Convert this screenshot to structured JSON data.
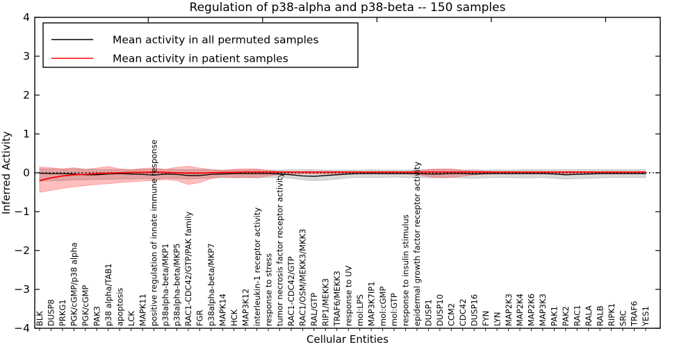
{
  "figure": {
    "title": "Regulation of p38-alpha and p38-beta -- 150 samples",
    "xlabel": "Cellular Entities",
    "ylabel": "Inferred Activity"
  },
  "legend": {
    "entries": [
      {
        "label": "Mean activity in all permuted samples",
        "color": "#000000"
      },
      {
        "label": "Mean activity in patient samples",
        "color": "#ff0000"
      }
    ]
  },
  "chart_data": {
    "type": "line",
    "title": "Regulation of p38-alpha and p38-beta -- 150 samples",
    "xlabel": "Cellular Entities",
    "ylabel": "Inferred Activity",
    "ylim": [
      -4,
      4
    ],
    "yticks": [
      -4,
      -3,
      -2,
      -1,
      0,
      1,
      2,
      3,
      4
    ],
    "grid": false,
    "legend_position": "upper left",
    "zero_reference_line": 0,
    "categories": [
      "BLK",
      "DUSP8",
      "PRKG1",
      "PGK/cGMP/p38 alpha",
      "PGK/cGMP",
      "PAK3",
      "p38 alpha/TAB1",
      "apoptosis",
      "LCK",
      "MAPK11",
      "positive regulation of innate immune response",
      "p38alpha-beta/MKP1",
      "p38alpha-beta/MKP5",
      "RAC1-CDC42/GTP/PAK family",
      "FGR",
      "p38alpha-beta/MKP7",
      "MAPK14",
      "HCK",
      "MAP3K12",
      "interleukin-1 receptor activity",
      "response to stress",
      "tumor necrosis factor receptor activity",
      "RAC1-CDC42/GTP",
      "RAC1/OSM/MEKK3/MKK3",
      "RAL/GTP",
      "RIP1/MEKK3",
      "TRAF6/MEKK3",
      "response to UV",
      "mol:LPS",
      "MAP3K7IP1",
      "mol:cGMP",
      "mol:GTP",
      "response to insulin stimulus",
      "epidermal growth factor receptor activity",
      "DUSP1",
      "DUSP10",
      "CCM2",
      "CDC42",
      "DUSP16",
      "FYN",
      "LYN",
      "MAP2K3",
      "MAP2K4",
      "MAP2K6",
      "MAP3K3",
      "PAK1",
      "PAK2",
      "RAC1",
      "RALA",
      "RALB",
      "RIPK1",
      "SRC",
      "TRAF6",
      "YES1"
    ],
    "series": [
      {
        "name": "Mean activity in all permuted samples",
        "color": "#000000",
        "width": 1.3,
        "values": [
          -0.01,
          -0.02,
          -0.02,
          -0.03,
          -0.05,
          -0.05,
          -0.03,
          -0.02,
          -0.03,
          -0.04,
          -0.06,
          -0.03,
          -0.04,
          -0.07,
          -0.07,
          -0.04,
          -0.03,
          -0.02,
          -0.02,
          -0.02,
          -0.02,
          -0.03,
          -0.05,
          -0.08,
          -0.09,
          -0.07,
          -0.05,
          -0.03,
          -0.02,
          -0.02,
          -0.02,
          -0.02,
          -0.02,
          -0.02,
          -0.03,
          -0.03,
          -0.02,
          -0.02,
          -0.03,
          -0.02,
          -0.02,
          -0.02,
          -0.02,
          -0.02,
          -0.02,
          -0.03,
          -0.05,
          -0.04,
          -0.03,
          -0.02,
          -0.02,
          -0.02,
          -0.02,
          -0.02
        ]
      },
      {
        "name": "Mean activity in patient samples",
        "color": "#ff0000",
        "width": 1.8,
        "values": [
          -0.2,
          -0.13,
          -0.08,
          -0.05,
          -0.04,
          -0.02,
          -0.01,
          0.0,
          0.01,
          0.01,
          0.02,
          0.01,
          0.0,
          -0.01,
          -0.01,
          0.0,
          0.01,
          0.01,
          0.02,
          0.02,
          0.02,
          0.02,
          0.02,
          0.02,
          0.02,
          0.02,
          0.02,
          0.02,
          0.02,
          0.02,
          0.02,
          0.02,
          0.02,
          0.02,
          0.02,
          0.02,
          0.02,
          0.02,
          0.02,
          0.02,
          0.02,
          0.02,
          0.02,
          0.02,
          0.02,
          0.02,
          0.02,
          0.02,
          0.02,
          0.02,
          0.02,
          0.02,
          0.02,
          0.02
        ]
      }
    ],
    "bands": [
      {
        "name": "permuted-samples-range",
        "color": "#aaaaaa",
        "fill_opacity": 0.45,
        "edge_color": "#9e9e9e",
        "upper": [
          0.1,
          0.1,
          0.09,
          0.1,
          0.09,
          0.08,
          0.09,
          0.08,
          0.08,
          0.09,
          0.08,
          0.08,
          0.09,
          0.08,
          0.08,
          0.08,
          0.07,
          0.08,
          0.07,
          0.08,
          0.07,
          0.07,
          0.08,
          0.08,
          0.08,
          0.07,
          0.07,
          0.07,
          0.07,
          0.08,
          0.07,
          0.07,
          0.07,
          0.08,
          0.08,
          0.08,
          0.08,
          0.07,
          0.08,
          0.07,
          0.08,
          0.07,
          0.08,
          0.08,
          0.08,
          0.08,
          0.08,
          0.08,
          0.08,
          0.08,
          0.08,
          0.08,
          0.08,
          0.08
        ],
        "lower": [
          -0.22,
          -0.2,
          -0.2,
          -0.18,
          -0.18,
          -0.17,
          -0.17,
          -0.16,
          -0.16,
          -0.15,
          -0.16,
          -0.14,
          -0.15,
          -0.16,
          -0.15,
          -0.13,
          -0.13,
          -0.13,
          -0.12,
          -0.13,
          -0.12,
          -0.12,
          -0.14,
          -0.18,
          -0.2,
          -0.19,
          -0.16,
          -0.13,
          -0.12,
          -0.12,
          -0.12,
          -0.11,
          -0.12,
          -0.12,
          -0.13,
          -0.13,
          -0.12,
          -0.13,
          -0.14,
          -0.13,
          -0.12,
          -0.12,
          -0.13,
          -0.13,
          -0.12,
          -0.14,
          -0.16,
          -0.15,
          -0.14,
          -0.13,
          -0.12,
          -0.12,
          -0.12,
          -0.12
        ]
      },
      {
        "name": "patient-samples-range",
        "color": "#ff0000",
        "fill_opacity": 0.25,
        "edge_color": "#ff6060",
        "upper": [
          0.15,
          0.13,
          0.1,
          0.13,
          0.09,
          0.12,
          0.16,
          0.1,
          0.08,
          0.11,
          0.13,
          0.09,
          0.14,
          0.17,
          0.12,
          0.08,
          0.06,
          0.09,
          0.1,
          0.1,
          0.06,
          0.03,
          0.03,
          0.03,
          0.03,
          0.03,
          0.03,
          0.03,
          0.03,
          0.03,
          0.03,
          0.03,
          0.03,
          0.04,
          0.09,
          0.1,
          0.1,
          0.07,
          0.05,
          0.04,
          0.03,
          0.03,
          0.03,
          0.03,
          0.03,
          0.03,
          0.03,
          0.03,
          0.03,
          0.03,
          0.03,
          0.03,
          0.03,
          0.03
        ],
        "lower": [
          -0.5,
          -0.45,
          -0.4,
          -0.36,
          -0.33,
          -0.3,
          -0.28,
          -0.25,
          -0.23,
          -0.21,
          -0.2,
          -0.17,
          -0.2,
          -0.3,
          -0.25,
          -0.15,
          -0.1,
          -0.12,
          -0.12,
          -0.12,
          -0.08,
          -0.04,
          -0.03,
          -0.03,
          -0.03,
          -0.03,
          -0.03,
          -0.03,
          -0.03,
          -0.03,
          -0.03,
          -0.03,
          -0.03,
          -0.05,
          -0.1,
          -0.12,
          -0.12,
          -0.09,
          -0.05,
          -0.04,
          -0.03,
          -0.03,
          -0.03,
          -0.03,
          -0.03,
          -0.03,
          -0.03,
          -0.03,
          -0.03,
          -0.03,
          -0.03,
          -0.03,
          -0.03,
          -0.03
        ]
      }
    ]
  }
}
